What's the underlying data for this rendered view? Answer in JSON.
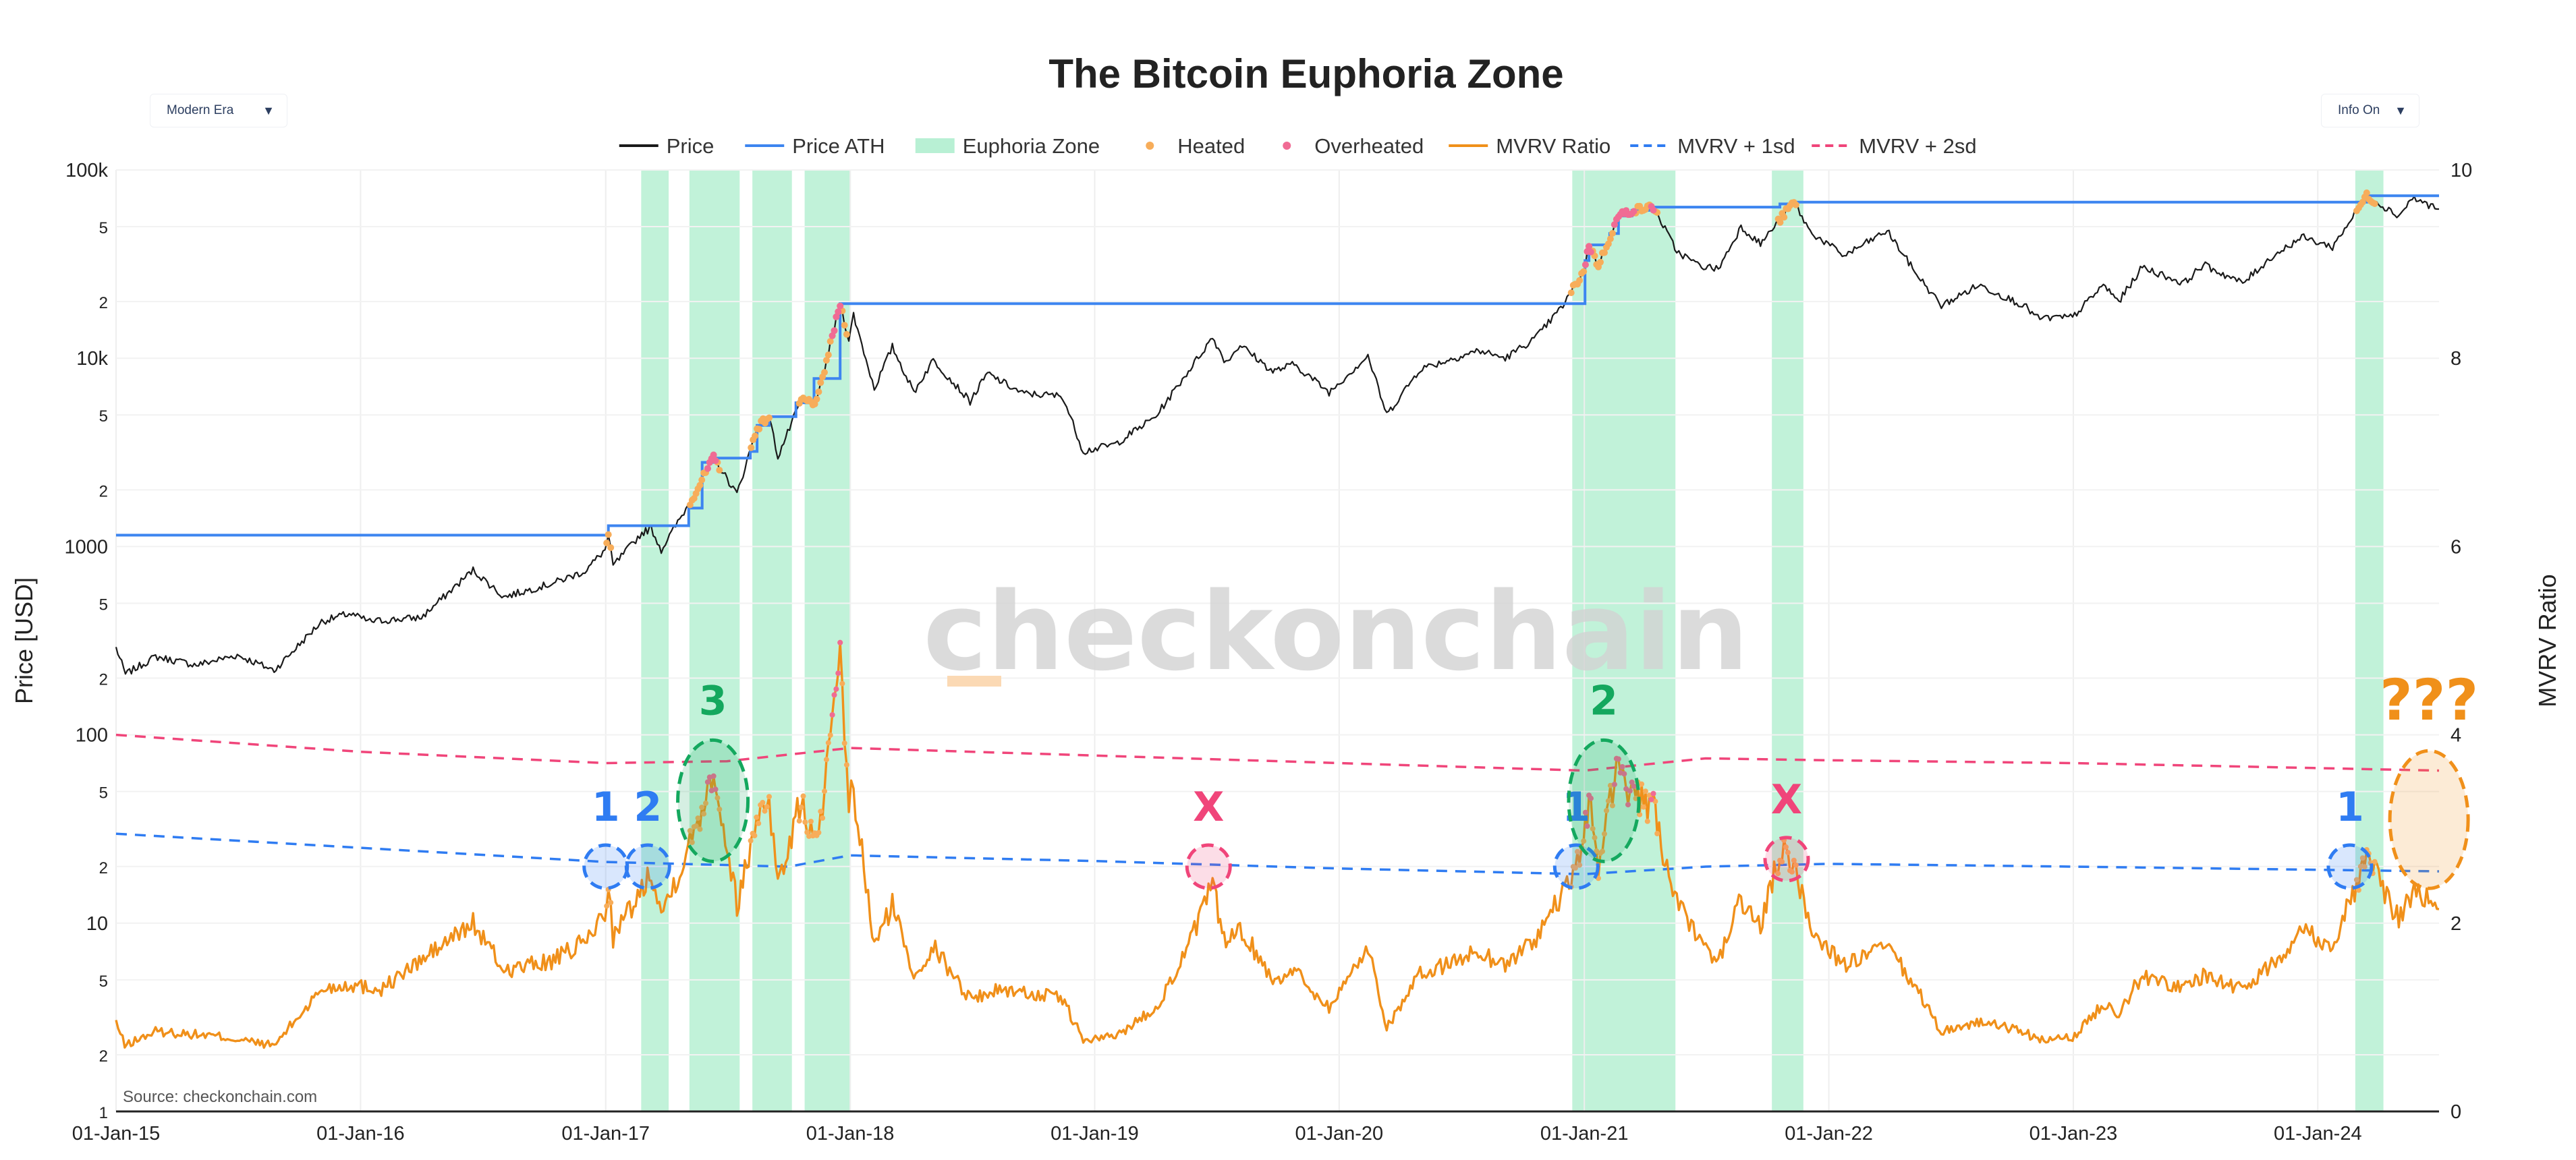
{
  "controls": {
    "era_selector": "Modern Era",
    "info_toggle": "Info On"
  },
  "chart_data": {
    "type": "line",
    "title": "The Bitcoin Euphoria Zone",
    "source": "Source: checkonchain.com",
    "watermark": "checkonchain",
    "y_left_label": "Price [USD]",
    "y_right_label": "MVRV Ratio",
    "x_tick_labels": [
      "01-Jan-15",
      "01-Jan-16",
      "01-Jan-17",
      "01-Jan-18",
      "01-Jan-19",
      "01-Jan-20",
      "01-Jan-21",
      "01-Jan-22",
      "01-Jan-23",
      "01-Jan-24"
    ],
    "x_range": [
      "2015-01-01",
      "2024-06-30"
    ],
    "y_left_scale": "log",
    "y_left_range": [
      1,
      100000
    ],
    "y_left_ticks": [
      {
        "v": 1,
        "t": "1"
      },
      {
        "v": 2,
        "t": "2"
      },
      {
        "v": 5,
        "t": "5"
      },
      {
        "v": 10,
        "t": "10"
      },
      {
        "v": 20,
        "t": "2"
      },
      {
        "v": 50,
        "t": "5"
      },
      {
        "v": 100,
        "t": "100"
      },
      {
        "v": 200,
        "t": "2"
      },
      {
        "v": 500,
        "t": "5"
      },
      {
        "v": 1000,
        "t": "1000"
      },
      {
        "v": 2000,
        "t": "2"
      },
      {
        "v": 5000,
        "t": "5"
      },
      {
        "v": 10000,
        "t": "10k"
      },
      {
        "v": 20000,
        "t": "2"
      },
      {
        "v": 50000,
        "t": "5"
      },
      {
        "v": 100000,
        "t": "100k"
      }
    ],
    "y_right_range": [
      0,
      10
    ],
    "y_right_ticks": [
      0,
      2,
      4,
      6,
      8,
      10
    ],
    "legend_position": "top-center",
    "legend": [
      "Price",
      "Price ATH",
      "Euphoria Zone",
      "Heated",
      "Overheated",
      "MVRV Ratio",
      "MVRV + 1sd",
      "MVRV + 2sd"
    ],
    "colors": {
      "price": "#1a1a1a",
      "price_ath": "#3d85f0",
      "euphoria_zone": "#a6ecc9",
      "heated": "#f7ad5a",
      "overheated": "#f06b94",
      "mvrv": "#f0901a",
      "mvrv_1sd": "#2f7cf2",
      "mvrv_2sd": "#f0457a",
      "annot_blue": "#2f7cf2",
      "annot_green": "#14a85e",
      "annot_red": "#f0457a",
      "annot_orange": "#f0901a"
    },
    "price_series": [
      [
        "2015-01-01",
        290
      ],
      [
        "2015-01-15",
        210
      ],
      [
        "2015-03-01",
        260
      ],
      [
        "2015-05-01",
        235
      ],
      [
        "2015-07-01",
        265
      ],
      [
        "2015-08-25",
        220
      ],
      [
        "2015-11-04",
        400
      ],
      [
        "2015-12-15",
        440
      ],
      [
        "2016-01-15",
        400
      ],
      [
        "2016-04-01",
        420
      ],
      [
        "2016-06-17",
        750
      ],
      [
        "2016-08-02",
        540
      ],
      [
        "2016-10-15",
        640
      ],
      [
        "2016-12-01",
        740
      ],
      [
        "2016-12-31",
        960
      ],
      [
        "2017-01-05",
        1130
      ],
      [
        "2017-01-12",
        790
      ],
      [
        "2017-02-24",
        1180
      ],
      [
        "2017-03-10",
        1250
      ],
      [
        "2017-03-25",
        960
      ],
      [
        "2017-05-10",
        1800
      ],
      [
        "2017-06-11",
        2950
      ],
      [
        "2017-07-16",
        1900
      ],
      [
        "2017-08-15",
        4300
      ],
      [
        "2017-09-02",
        4900
      ],
      [
        "2017-09-15",
        3000
      ],
      [
        "2017-10-20",
        6000
      ],
      [
        "2017-11-12",
        5800
      ],
      [
        "2017-12-17",
        19500
      ],
      [
        "2017-12-30",
        12500
      ],
      [
        "2018-01-06",
        17000
      ],
      [
        "2018-02-06",
        6900
      ],
      [
        "2018-03-05",
        11500
      ],
      [
        "2018-04-06",
        6600
      ],
      [
        "2018-05-05",
        9800
      ],
      [
        "2018-06-29",
        5900
      ],
      [
        "2018-07-25",
        8300
      ],
      [
        "2018-09-15",
        6500
      ],
      [
        "2018-11-14",
        6300
      ],
      [
        "2018-12-15",
        3200
      ],
      [
        "2019-02-01",
        3500
      ],
      [
        "2019-04-02",
        4900
      ],
      [
        "2019-05-15",
        8000
      ],
      [
        "2019-06-26",
        12900
      ],
      [
        "2019-07-16",
        9500
      ],
      [
        "2019-08-06",
        11800
      ],
      [
        "2019-09-24",
        8500
      ],
      [
        "2019-10-26",
        9300
      ],
      [
        "2019-12-17",
        6600
      ],
      [
        "2020-02-13",
        10300
      ],
      [
        "2020-03-12",
        5000
      ],
      [
        "2020-05-01",
        8800
      ],
      [
        "2020-06-01",
        9500
      ],
      [
        "2020-07-27",
        11000
      ],
      [
        "2020-09-05",
        10000
      ],
      [
        "2020-10-21",
        12900
      ],
      [
        "2020-11-30",
        19000
      ],
      [
        "2020-12-31",
        29000
      ],
      [
        "2021-01-08",
        40000
      ],
      [
        "2021-01-22",
        31000
      ],
      [
        "2021-02-21",
        57000
      ],
      [
        "2021-03-13",
        61000
      ],
      [
        "2021-04-14",
        63500
      ],
      [
        "2021-05-19",
        37000
      ],
      [
        "2021-06-22",
        31000
      ],
      [
        "2021-07-20",
        29800
      ],
      [
        "2021-08-23",
        50000
      ],
      [
        "2021-09-21",
        40500
      ],
      [
        "2021-11-10",
        67500
      ],
      [
        "2021-12-04",
        47000
      ],
      [
        "2022-01-24",
        35000
      ],
      [
        "2022-03-29",
        47500
      ],
      [
        "2022-05-12",
        28000
      ],
      [
        "2022-06-18",
        19000
      ],
      [
        "2022-08-13",
        24500
      ],
      [
        "2022-10-20",
        19000
      ],
      [
        "2022-11-09",
        16300
      ],
      [
        "2022-12-31",
        16500
      ],
      [
        "2023-02-15",
        24500
      ],
      [
        "2023-03-10",
        20000
      ],
      [
        "2023-04-14",
        30500
      ],
      [
        "2023-06-15",
        25000
      ],
      [
        "2023-07-14",
        31400
      ],
      [
        "2023-09-11",
        25000
      ],
      [
        "2023-10-24",
        34500
      ],
      [
        "2023-12-08",
        44000
      ],
      [
        "2024-01-23",
        39000
      ],
      [
        "2024-03-14",
        73000
      ],
      [
        "2024-05-01",
        57000
      ],
      [
        "2024-05-21",
        71000
      ],
      [
        "2024-06-30",
        62000
      ]
    ],
    "price_ath_series": [
      [
        "2015-01-01",
        1150
      ],
      [
        "2017-01-03",
        1150
      ],
      [
        "2017-01-05",
        1290
      ],
      [
        "2017-03-03",
        1290
      ],
      [
        "2017-05-05",
        1600
      ],
      [
        "2017-05-25",
        2800
      ],
      [
        "2017-06-11",
        2950
      ],
      [
        "2017-08-05",
        3200
      ],
      [
        "2017-08-15",
        4400
      ],
      [
        "2017-09-02",
        4900
      ],
      [
        "2017-10-12",
        5800
      ],
      [
        "2017-11-08",
        7800
      ],
      [
        "2017-12-17",
        19500
      ],
      [
        "2020-12-16",
        19500
      ],
      [
        "2021-01-02",
        33000
      ],
      [
        "2021-01-08",
        40000
      ],
      [
        "2021-02-08",
        46000
      ],
      [
        "2021-02-21",
        57000
      ],
      [
        "2021-03-13",
        61000
      ],
      [
        "2021-04-14",
        63500
      ],
      [
        "2021-10-20",
        66000
      ],
      [
        "2021-11-10",
        67500
      ],
      [
        "2024-03-05",
        67500
      ],
      [
        "2024-03-14",
        73000
      ],
      [
        "2024-06-30",
        73000
      ]
    ],
    "euphoria_zones": [
      [
        "2017-02-23",
        "2017-04-05"
      ],
      [
        "2017-05-06",
        "2017-07-20"
      ],
      [
        "2017-08-08",
        "2017-10-06"
      ],
      [
        "2017-10-25",
        "2018-01-02"
      ],
      [
        "2020-12-14",
        "2021-05-17"
      ],
      [
        "2021-10-08",
        "2021-11-24"
      ],
      [
        "2024-02-26",
        "2024-04-08"
      ]
    ],
    "heated_ranges": [
      [
        "2017-01-01",
        "2017-01-10"
      ],
      [
        "2017-05-05",
        "2017-06-20"
      ],
      [
        "2017-08-05",
        "2017-09-05"
      ],
      [
        "2017-10-15",
        "2017-12-28"
      ],
      [
        "2020-12-10",
        "2021-04-20"
      ],
      [
        "2021-10-15",
        "2021-11-15"
      ],
      [
        "2024-02-28",
        "2024-03-28"
      ]
    ],
    "overheated_ranges": [
      [
        "2017-06-01",
        "2017-06-14"
      ],
      [
        "2017-12-05",
        "2017-12-20"
      ],
      [
        "2021-01-02",
        "2021-01-12"
      ],
      [
        "2021-02-15",
        "2021-03-18"
      ],
      [
        "2021-04-10",
        "2021-04-16"
      ]
    ],
    "mvrv_series": [
      [
        "2015-01-01",
        0.95
      ],
      [
        "2015-01-14",
        0.7
      ],
      [
        "2015-03-01",
        0.85
      ],
      [
        "2015-06-01",
        0.8
      ],
      [
        "2015-08-25",
        0.7
      ],
      [
        "2015-11-04",
        1.3
      ],
      [
        "2015-12-15",
        1.35
      ],
      [
        "2016-02-01",
        1.3
      ],
      [
        "2016-06-17",
        2.0
      ],
      [
        "2016-08-02",
        1.5
      ],
      [
        "2016-10-15",
        1.6
      ],
      [
        "2016-12-01",
        1.8
      ],
      [
        "2016-12-31",
        2.1
      ],
      [
        "2017-01-05",
        2.45
      ],
      [
        "2017-01-12",
        1.85
      ],
      [
        "2017-02-24",
        2.35
      ],
      [
        "2017-03-10",
        2.6
      ],
      [
        "2017-03-25",
        2.1
      ],
      [
        "2017-05-10",
        2.9
      ],
      [
        "2017-06-11",
        3.65
      ],
      [
        "2017-07-16",
        2.2
      ],
      [
        "2017-08-20",
        3.25
      ],
      [
        "2017-09-02",
        3.35
      ],
      [
        "2017-09-15",
        2.4
      ],
      [
        "2017-10-20",
        3.3
      ],
      [
        "2017-11-12",
        2.8
      ],
      [
        "2017-12-17",
        4.7
      ],
      [
        "2017-12-30",
        3.3
      ],
      [
        "2018-01-06",
        3.4
      ],
      [
        "2018-02-06",
        1.75
      ],
      [
        "2018-03-05",
        2.2
      ],
      [
        "2018-04-06",
        1.45
      ],
      [
        "2018-05-05",
        1.75
      ],
      [
        "2018-06-29",
        1.2
      ],
      [
        "2018-08-15",
        1.3
      ],
      [
        "2018-11-14",
        1.2
      ],
      [
        "2018-12-15",
        0.75
      ],
      [
        "2019-02-01",
        0.8
      ],
      [
        "2019-04-02",
        1.1
      ],
      [
        "2019-05-15",
        1.65
      ],
      [
        "2019-06-26",
        2.4
      ],
      [
        "2019-07-16",
        1.75
      ],
      [
        "2019-08-06",
        1.95
      ],
      [
        "2019-09-24",
        1.4
      ],
      [
        "2019-10-26",
        1.5
      ],
      [
        "2019-12-17",
        1.1
      ],
      [
        "2020-02-13",
        1.75
      ],
      [
        "2020-03-12",
        0.9
      ],
      [
        "2020-05-01",
        1.45
      ],
      [
        "2020-07-27",
        1.7
      ],
      [
        "2020-09-05",
        1.55
      ],
      [
        "2020-10-21",
        1.85
      ],
      [
        "2020-11-30",
        2.3
      ],
      [
        "2020-12-31",
        2.8
      ],
      [
        "2021-01-08",
        3.4
      ],
      [
        "2021-01-22",
        2.6
      ],
      [
        "2021-02-21",
        3.75
      ],
      [
        "2021-03-13",
        3.35
      ],
      [
        "2021-04-14",
        3.2
      ],
      [
        "2021-05-19",
        2.2
      ],
      [
        "2021-06-22",
        1.8
      ],
      [
        "2021-07-20",
        1.6
      ],
      [
        "2021-08-23",
        2.25
      ],
      [
        "2021-09-21",
        1.95
      ],
      [
        "2021-10-20",
        2.75
      ],
      [
        "2021-11-10",
        2.65
      ],
      [
        "2021-12-04",
        1.95
      ],
      [
        "2022-01-24",
        1.55
      ],
      [
        "2022-03-29",
        1.75
      ],
      [
        "2022-05-12",
        1.3
      ],
      [
        "2022-06-18",
        0.85
      ],
      [
        "2022-08-13",
        0.95
      ],
      [
        "2022-10-20",
        0.85
      ],
      [
        "2022-11-09",
        0.75
      ],
      [
        "2022-12-31",
        0.78
      ],
      [
        "2023-02-15",
        1.15
      ],
      [
        "2023-03-10",
        1.05
      ],
      [
        "2023-04-14",
        1.45
      ],
      [
        "2023-06-15",
        1.3
      ],
      [
        "2023-07-14",
        1.45
      ],
      [
        "2023-09-11",
        1.3
      ],
      [
        "2023-10-24",
        1.55
      ],
      [
        "2023-12-08",
        1.95
      ],
      [
        "2024-01-23",
        1.75
      ],
      [
        "2024-03-14",
        2.7
      ],
      [
        "2024-05-01",
        2.05
      ],
      [
        "2024-05-21",
        2.35
      ],
      [
        "2024-06-30",
        2.15
      ]
    ],
    "mvrv_1sd_series": [
      [
        "2015-01-01",
        2.95
      ],
      [
        "2016-01-01",
        2.8
      ],
      [
        "2017-01-01",
        2.65
      ],
      [
        "2017-10-01",
        2.6
      ],
      [
        "2018-01-01",
        2.72
      ],
      [
        "2019-01-01",
        2.66
      ],
      [
        "2020-01-01",
        2.58
      ],
      [
        "2021-01-01",
        2.52
      ],
      [
        "2021-07-01",
        2.6
      ],
      [
        "2022-01-01",
        2.63
      ],
      [
        "2023-01-01",
        2.6
      ],
      [
        "2024-06-30",
        2.55
      ]
    ],
    "mvrv_2sd_series": [
      [
        "2015-01-01",
        4.0
      ],
      [
        "2016-01-01",
        3.82
      ],
      [
        "2017-01-01",
        3.7
      ],
      [
        "2017-07-01",
        3.72
      ],
      [
        "2018-01-01",
        3.86
      ],
      [
        "2019-01-01",
        3.78
      ],
      [
        "2020-01-01",
        3.7
      ],
      [
        "2021-01-01",
        3.62
      ],
      [
        "2021-07-01",
        3.75
      ],
      [
        "2022-01-01",
        3.73
      ],
      [
        "2023-01-01",
        3.7
      ],
      [
        "2024-06-30",
        3.62
      ]
    ],
    "annotations": [
      {
        "text": "1",
        "color": "blue",
        "date": "2017-01-01",
        "mvrv": 2.6,
        "kind": "marker"
      },
      {
        "text": "2",
        "color": "blue",
        "date": "2017-03-05",
        "mvrv": 2.6,
        "kind": "marker"
      },
      {
        "text": "3",
        "color": "green",
        "date": "2017-06-10",
        "mvrv": 3.3,
        "kind": "tall"
      },
      {
        "text": "X",
        "color": "red",
        "date": "2019-06-20",
        "mvrv": 2.6,
        "kind": "marker"
      },
      {
        "text": "1",
        "color": "blue",
        "date": "2020-12-20",
        "mvrv": 2.6,
        "kind": "marker"
      },
      {
        "text": "2",
        "color": "green",
        "date": "2021-01-30",
        "mvrv": 3.3,
        "kind": "tall"
      },
      {
        "text": "X",
        "color": "red",
        "date": "2021-10-30",
        "mvrv": 2.68,
        "kind": "marker"
      },
      {
        "text": "1",
        "color": "blue",
        "date": "2024-02-18",
        "mvrv": 2.6,
        "kind": "marker"
      },
      {
        "text": "???",
        "color": "orange",
        "date": "2024-06-15",
        "mvrv": 3.1,
        "kind": "big"
      }
    ]
  }
}
